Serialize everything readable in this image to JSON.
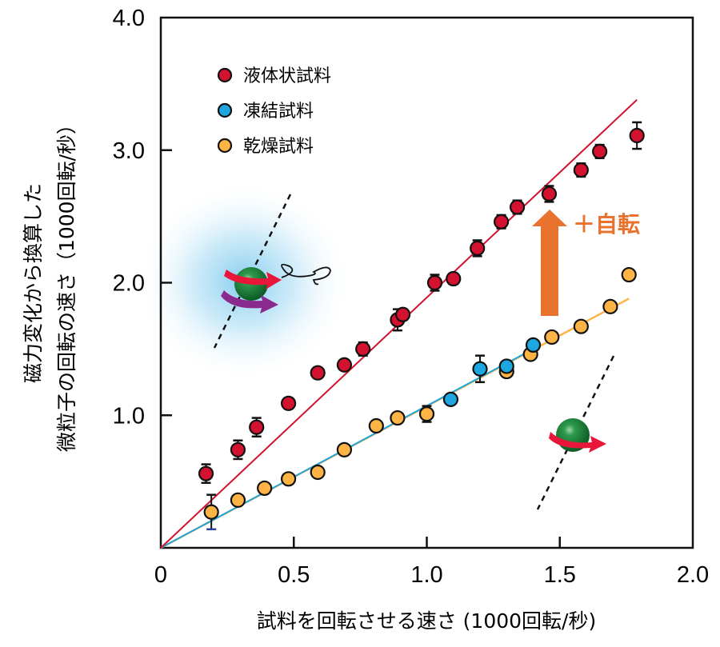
{
  "chart_data": {
    "type": "scatter",
    "title": "",
    "xlabel": "試料を回転させる速さ (1000回転/秒)",
    "ylabel_lines": [
      "磁力変化から換算した",
      "微粒子の回転の速さ（1000回転/秒）"
    ],
    "xlim": [
      0,
      2.0
    ],
    "ylim": [
      0,
      4.0
    ],
    "x_ticks": [
      0,
      0.5,
      1.0,
      1.5,
      2.0
    ],
    "x_tick_labels": [
      "0",
      "0.5",
      "1.0",
      "1.5",
      "2.0"
    ],
    "y_ticks": [
      1.0,
      2.0,
      3.0,
      4.0
    ],
    "y_tick_labels": [
      "1.0",
      "2.0",
      "3.0",
      "4.0"
    ],
    "grid": false,
    "legend_position": "top-left",
    "series": [
      {
        "name": "液体状試料",
        "color": "#D2122E",
        "points": [
          {
            "x": 0.17,
            "y": 0.56,
            "err": 0.07
          },
          {
            "x": 0.29,
            "y": 0.74,
            "err": 0.07
          },
          {
            "x": 0.36,
            "y": 0.91,
            "err": 0.07
          },
          {
            "x": 0.48,
            "y": 1.09,
            "err": 0.04
          },
          {
            "x": 0.59,
            "y": 1.32,
            "err": 0.04
          },
          {
            "x": 0.69,
            "y": 1.38,
            "err": 0.03
          },
          {
            "x": 0.76,
            "y": 1.5,
            "err": 0.05
          },
          {
            "x": 0.89,
            "y": 1.72,
            "err": 0.08
          },
          {
            "x": 0.91,
            "y": 1.76,
            "err": 0.04
          },
          {
            "x": 1.03,
            "y": 2.0,
            "err": 0.06
          },
          {
            "x": 1.1,
            "y": 2.03,
            "err": 0.04
          },
          {
            "x": 1.19,
            "y": 2.26,
            "err": 0.06
          },
          {
            "x": 1.28,
            "y": 2.46,
            "err": 0.05
          },
          {
            "x": 1.34,
            "y": 2.57,
            "err": 0.05
          },
          {
            "x": 1.46,
            "y": 2.67,
            "err": 0.06
          },
          {
            "x": 1.58,
            "y": 2.85,
            "err": 0.05
          },
          {
            "x": 1.65,
            "y": 2.99,
            "err": 0.05
          },
          {
            "x": 1.79,
            "y": 3.11,
            "err": 0.1
          }
        ],
        "fit_line": {
          "x": [
            0,
            1.79
          ],
          "y": [
            0,
            3.38
          ]
        }
      },
      {
        "name": "凍結試料",
        "color": "#1EA6E0",
        "points": [
          {
            "x": 1.09,
            "y": 1.12,
            "err": 0
          },
          {
            "x": 1.2,
            "y": 1.35,
            "err": 0.1
          },
          {
            "x": 1.3,
            "y": 1.37,
            "err": 0
          },
          {
            "x": 1.4,
            "y": 1.53,
            "err": 0
          }
        ],
        "fit_line": {
          "x": [
            0,
            1.4
          ],
          "y": [
            0,
            1.5
          ]
        }
      },
      {
        "name": "乾燥試料",
        "color": "#FDB445",
        "points": [
          {
            "x": 0.19,
            "y": 0.27,
            "err": 0.13
          },
          {
            "x": 0.29,
            "y": 0.36,
            "err": 0
          },
          {
            "x": 0.39,
            "y": 0.45,
            "err": 0
          },
          {
            "x": 0.48,
            "y": 0.52,
            "err": 0
          },
          {
            "x": 0.59,
            "y": 0.57,
            "err": 0
          },
          {
            "x": 0.69,
            "y": 0.74,
            "err": 0
          },
          {
            "x": 0.81,
            "y": 0.92,
            "err": 0
          },
          {
            "x": 0.89,
            "y": 0.98,
            "err": 0
          },
          {
            "x": 1.0,
            "y": 1.01,
            "err": 0.06
          },
          {
            "x": 1.3,
            "y": 1.33,
            "err": 0
          },
          {
            "x": 1.39,
            "y": 1.46,
            "err": 0
          },
          {
            "x": 1.47,
            "y": 1.59,
            "err": 0
          },
          {
            "x": 1.58,
            "y": 1.67,
            "err": 0
          },
          {
            "x": 1.69,
            "y": 1.82,
            "err": 0
          },
          {
            "x": 1.76,
            "y": 2.06,
            "err": 0
          }
        ],
        "fit_line": {
          "x": [
            0,
            1.76
          ],
          "y": [
            0,
            1.88
          ]
        }
      }
    ],
    "annotations": [
      {
        "text": "＋自転",
        "color": "#E8732F",
        "arrow": "up",
        "x": 1.45,
        "y_from": 1.75,
        "y_to": 2.55
      }
    ]
  }
}
